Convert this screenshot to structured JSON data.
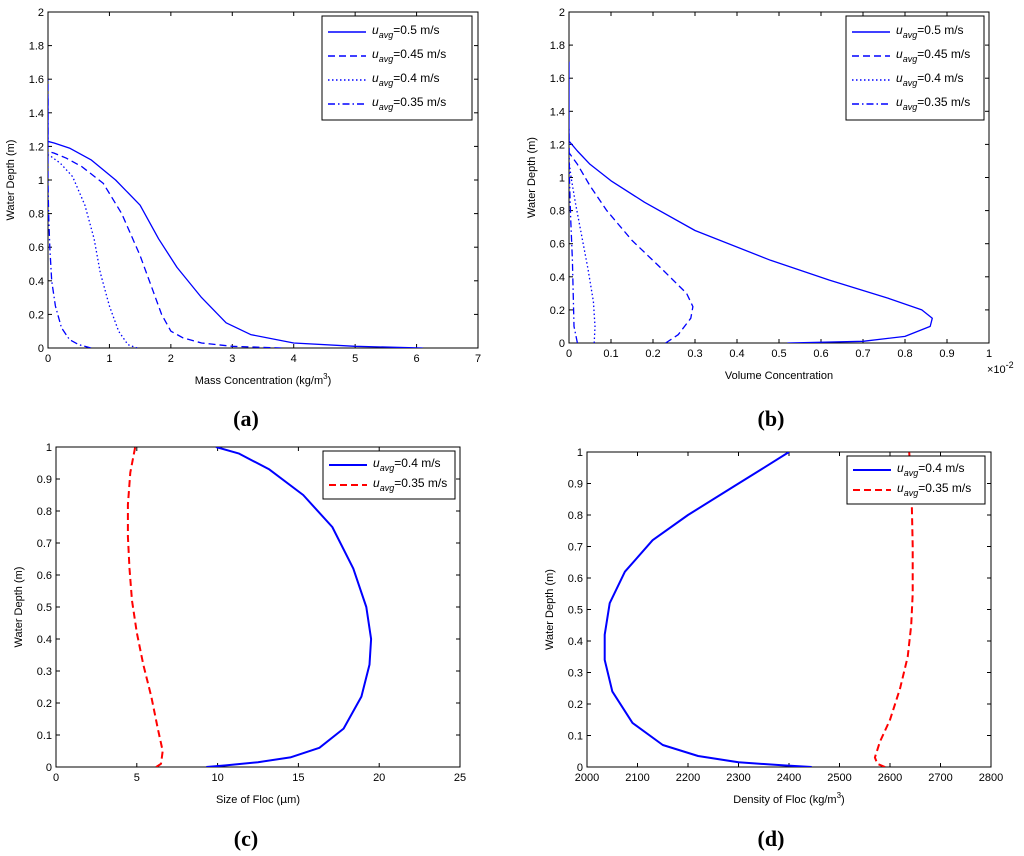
{
  "chart_data": [
    {
      "id": "a",
      "type": "line",
      "panel_label": "(a)",
      "xlabel": "Mass Concentration (kg/m",
      "xlabel_sup": "3",
      "xlabel_end": ")",
      "ylabel": "Water Depth (m)",
      "xlim": [
        0,
        7
      ],
      "ylim": [
        0,
        2
      ],
      "xticks": [
        "0",
        "1",
        "2",
        "3",
        "4",
        "5",
        "6",
        "7"
      ],
      "yticks": [
        "0",
        "0.2",
        "0.4",
        "0.6",
        "0.8",
        "1",
        "1.2",
        "1.4",
        "1.6",
        "1.8",
        "2"
      ],
      "xtick_values": [
        0,
        1,
        2,
        3,
        4,
        5,
        6,
        7
      ],
      "ytick_values": [
        0,
        0.2,
        0.4,
        0.6,
        0.8,
        1,
        1.2,
        1.4,
        1.6,
        1.8,
        2
      ],
      "multiplier": "",
      "legend": "top-right",
      "series": [
        {
          "name": "u_avg=0.5 m/s",
          "prefix": "u",
          "sub": "avg",
          "suffix": "=0.5 m/s",
          "color": "#0000ff",
          "style": "solid",
          "points": [
            [
              6.1,
              0.0
            ],
            [
              5.0,
              0.01
            ],
            [
              4.0,
              0.03
            ],
            [
              3.3,
              0.08
            ],
            [
              2.9,
              0.15
            ],
            [
              2.5,
              0.3
            ],
            [
              2.1,
              0.48
            ],
            [
              1.8,
              0.65
            ],
            [
              1.5,
              0.85
            ],
            [
              1.1,
              1.0
            ],
            [
              0.7,
              1.12
            ],
            [
              0.35,
              1.19
            ],
            [
              0.1,
              1.22
            ],
            [
              0.0,
              1.23
            ],
            [
              0.0,
              1.5
            ]
          ]
        },
        {
          "name": "u_avg=0.45 m/s",
          "prefix": "u",
          "sub": "avg",
          "suffix": "=0.45 m/s",
          "color": "#0000ff",
          "style": "dashed",
          "points": [
            [
              3.8,
              0.0
            ],
            [
              3.0,
              0.01
            ],
            [
              2.5,
              0.03
            ],
            [
              2.2,
              0.06
            ],
            [
              2.0,
              0.1
            ],
            [
              1.85,
              0.2
            ],
            [
              1.7,
              0.35
            ],
            [
              1.5,
              0.55
            ],
            [
              1.2,
              0.8
            ],
            [
              0.9,
              0.98
            ],
            [
              0.55,
              1.08
            ],
            [
              0.3,
              1.13
            ],
            [
              0.1,
              1.16
            ],
            [
              0.0,
              1.17
            ]
          ]
        },
        {
          "name": "u_avg=0.4 m/s",
          "prefix": "u",
          "sub": "avg",
          "suffix": "=0.4 m/s",
          "color": "#0000ff",
          "style": "dotted",
          "points": [
            [
              1.45,
              0.0
            ],
            [
              1.3,
              0.02
            ],
            [
              1.15,
              0.1
            ],
            [
              1.0,
              0.25
            ],
            [
              0.85,
              0.45
            ],
            [
              0.75,
              0.65
            ],
            [
              0.6,
              0.85
            ],
            [
              0.4,
              1.02
            ],
            [
              0.2,
              1.1
            ],
            [
              0.05,
              1.14
            ],
            [
              0.0,
              1.15
            ]
          ]
        },
        {
          "name": "u_avg=0.35 m/s",
          "prefix": "u",
          "sub": "avg",
          "suffix": "=0.35 m/s",
          "color": "#0000ff",
          "style": "dashdot",
          "points": [
            [
              0.7,
              0.0
            ],
            [
              0.5,
              0.02
            ],
            [
              0.35,
              0.05
            ],
            [
              0.22,
              0.12
            ],
            [
              0.12,
              0.25
            ],
            [
              0.06,
              0.4
            ],
            [
              0.03,
              0.6
            ],
            [
              0.01,
              0.8
            ],
            [
              0.0,
              1.0
            ],
            [
              0.0,
              1.6
            ]
          ]
        }
      ]
    },
    {
      "id": "b",
      "type": "line",
      "panel_label": "(b)",
      "xlabel": "Volume Concentration",
      "xlabel_sup": "",
      "xlabel_end": "",
      "ylabel": "Water Depth (m)",
      "xlim": [
        0,
        1
      ],
      "ylim": [
        0,
        2
      ],
      "xticks": [
        "0",
        "0.1",
        "0.2",
        "0.3",
        "0.4",
        "0.5",
        "0.6",
        "0.7",
        "0.8",
        "0.9",
        "1"
      ],
      "yticks": [
        "0",
        "0.2",
        "0.4",
        "0.6",
        "0.8",
        "1",
        "1.2",
        "1.4",
        "1.6",
        "1.8",
        "2"
      ],
      "xtick_values": [
        0,
        0.1,
        0.2,
        0.3,
        0.4,
        0.5,
        0.6,
        0.7,
        0.8,
        0.9,
        1
      ],
      "ytick_values": [
        0,
        0.2,
        0.4,
        0.6,
        0.8,
        1,
        1.2,
        1.4,
        1.6,
        1.8,
        2
      ],
      "multiplier": "×10",
      "multiplier_sup": "-2",
      "legend": "top-right",
      "series": [
        {
          "name": "u_avg=0.5 m/s",
          "prefix": "u",
          "sub": "avg",
          "suffix": "=0.5 m/s",
          "color": "#0000ff",
          "style": "solid",
          "points": [
            [
              0.52,
              0.0
            ],
            [
              0.7,
              0.01
            ],
            [
              0.8,
              0.04
            ],
            [
              0.86,
              0.1
            ],
            [
              0.865,
              0.15
            ],
            [
              0.84,
              0.2
            ],
            [
              0.76,
              0.27
            ],
            [
              0.62,
              0.38
            ],
            [
              0.48,
              0.5
            ],
            [
              0.3,
              0.68
            ],
            [
              0.18,
              0.85
            ],
            [
              0.1,
              0.98
            ],
            [
              0.05,
              1.08
            ],
            [
              0.02,
              1.16
            ],
            [
              0.0,
              1.22
            ],
            [
              0.0,
              1.7
            ]
          ]
        },
        {
          "name": "u_avg=0.45 m/s",
          "prefix": "u",
          "sub": "avg",
          "suffix": "=0.45 m/s",
          "color": "#0000ff",
          "style": "dashed",
          "points": [
            [
              0.23,
              0.0
            ],
            [
              0.26,
              0.05
            ],
            [
              0.29,
              0.15
            ],
            [
              0.295,
              0.22
            ],
            [
              0.28,
              0.3
            ],
            [
              0.22,
              0.45
            ],
            [
              0.15,
              0.62
            ],
            [
              0.09,
              0.8
            ],
            [
              0.05,
              0.95
            ],
            [
              0.02,
              1.08
            ],
            [
              0.0,
              1.15
            ]
          ]
        },
        {
          "name": "u_avg=0.4 m/s",
          "prefix": "u",
          "sub": "avg",
          "suffix": "=0.4 m/s",
          "color": "#0000ff",
          "style": "dotted",
          "points": [
            [
              0.06,
              0.0
            ],
            [
              0.062,
              0.1
            ],
            [
              0.058,
              0.25
            ],
            [
              0.045,
              0.45
            ],
            [
              0.03,
              0.65
            ],
            [
              0.015,
              0.85
            ],
            [
              0.005,
              1.0
            ],
            [
              0.0,
              1.1
            ]
          ]
        },
        {
          "name": "u_avg=0.35 m/s",
          "prefix": "u",
          "sub": "avg",
          "suffix": "=0.35 m/s",
          "color": "#0000ff",
          "style": "dashdot",
          "points": [
            [
              0.02,
              0.0
            ],
            [
              0.012,
              0.1
            ],
            [
              0.01,
              0.3
            ],
            [
              0.008,
              0.5
            ],
            [
              0.004,
              0.75
            ],
            [
              0.001,
              1.0
            ],
            [
              0.0,
              1.3
            ]
          ]
        }
      ]
    },
    {
      "id": "c",
      "type": "line",
      "panel_label": "(c)",
      "xlabel": "Size of Floc (",
      "xlabel_mu": "μ",
      "xlabel_end": "m)",
      "ylabel": "Water Depth (m)",
      "xlim": [
        0,
        25
      ],
      "ylim": [
        0,
        1
      ],
      "xticks": [
        "0",
        "5",
        "10",
        "15",
        "20",
        "25"
      ],
      "yticks": [
        "0",
        "0.1",
        "0.2",
        "0.3",
        "0.4",
        "0.5",
        "0.6",
        "0.7",
        "0.8",
        "0.9",
        "1"
      ],
      "xtick_values": [
        0,
        5,
        10,
        15,
        20,
        25
      ],
      "ytick_values": [
        0,
        0.1,
        0.2,
        0.3,
        0.4,
        0.5,
        0.6,
        0.7,
        0.8,
        0.9,
        1
      ],
      "multiplier": "",
      "legend": "top-right",
      "series": [
        {
          "name": "u_avg=0.4 m/s",
          "prefix": "u",
          "sub": "avg",
          "suffix": "=0.4 m/s",
          "color": "#0000ff",
          "style": "solid",
          "points": [
            [
              9.3,
              0.0
            ],
            [
              10.5,
              0.005
            ],
            [
              12.5,
              0.015
            ],
            [
              14.5,
              0.03
            ],
            [
              16.3,
              0.06
            ],
            [
              17.8,
              0.12
            ],
            [
              18.9,
              0.22
            ],
            [
              19.4,
              0.32
            ],
            [
              19.5,
              0.4
            ],
            [
              19.2,
              0.5
            ],
            [
              18.4,
              0.62
            ],
            [
              17.1,
              0.75
            ],
            [
              15.3,
              0.85
            ],
            [
              13.2,
              0.93
            ],
            [
              11.3,
              0.98
            ],
            [
              9.9,
              1.0
            ]
          ]
        },
        {
          "name": "u_avg=0.35 m/s",
          "prefix": "u",
          "sub": "avg",
          "suffix": "=0.35 m/s",
          "color": "#ff0000",
          "style": "dashed",
          "points": [
            [
              6.2,
              0.0
            ],
            [
              6.5,
              0.01
            ],
            [
              6.6,
              0.05
            ],
            [
              6.3,
              0.12
            ],
            [
              5.9,
              0.22
            ],
            [
              5.4,
              0.32
            ],
            [
              5.0,
              0.42
            ],
            [
              4.7,
              0.52
            ],
            [
              4.55,
              0.62
            ],
            [
              4.45,
              0.72
            ],
            [
              4.45,
              0.82
            ],
            [
              4.6,
              0.92
            ],
            [
              4.9,
              1.0
            ]
          ]
        }
      ]
    },
    {
      "id": "d",
      "type": "line",
      "panel_label": "(d)",
      "xlabel": "Density of Floc (kg/m",
      "xlabel_sup": "3",
      "xlabel_end": ")",
      "ylabel": "Water Depth (m)",
      "xlim": [
        2000,
        2800
      ],
      "ylim": [
        0,
        1
      ],
      "xticks": [
        "2000",
        "2100",
        "2200",
        "2300",
        "2400",
        "2500",
        "2600",
        "2700",
        "2800"
      ],
      "yticks": [
        "0",
        "0.1",
        "0.2",
        "0.3",
        "0.4",
        "0.5",
        "0.6",
        "0.7",
        "0.8",
        "0.9",
        "1"
      ],
      "xtick_values": [
        2000,
        2100,
        2200,
        2300,
        2400,
        2500,
        2600,
        2700,
        2800
      ],
      "ytick_values": [
        0,
        0.1,
        0.2,
        0.3,
        0.4,
        0.5,
        0.6,
        0.7,
        0.8,
        0.9,
        1
      ],
      "multiplier": "",
      "legend": "top-right",
      "series": [
        {
          "name": "u_avg=0.4 m/s",
          "prefix": "u",
          "sub": "avg",
          "suffix": "=0.4 m/s",
          "color": "#0000ff",
          "style": "solid",
          "points": [
            [
              2445,
              0.0
            ],
            [
              2390,
              0.005
            ],
            [
              2300,
              0.015
            ],
            [
              2220,
              0.035
            ],
            [
              2150,
              0.07
            ],
            [
              2090,
              0.14
            ],
            [
              2050,
              0.24
            ],
            [
              2035,
              0.34
            ],
            [
              2035,
              0.42
            ],
            [
              2045,
              0.52
            ],
            [
              2075,
              0.62
            ],
            [
              2130,
              0.72
            ],
            [
              2200,
              0.8
            ],
            [
              2290,
              0.89
            ],
            [
              2350,
              0.95
            ],
            [
              2400,
              1.0
            ]
          ]
        },
        {
          "name": "u_avg=0.35 m/s",
          "prefix": "u",
          "sub": "avg",
          "suffix": "=0.35 m/s",
          "color": "#ff0000",
          "style": "dashed",
          "points": [
            [
              2590,
              0.0
            ],
            [
              2575,
              0.01
            ],
            [
              2570,
              0.03
            ],
            [
              2580,
              0.08
            ],
            [
              2600,
              0.15
            ],
            [
              2620,
              0.25
            ],
            [
              2635,
              0.35
            ],
            [
              2642,
              0.45
            ],
            [
              2645,
              0.55
            ],
            [
              2645,
              0.7
            ],
            [
              2643,
              0.85
            ],
            [
              2640,
              0.95
            ],
            [
              2638,
              1.0
            ]
          ]
        }
      ]
    }
  ]
}
